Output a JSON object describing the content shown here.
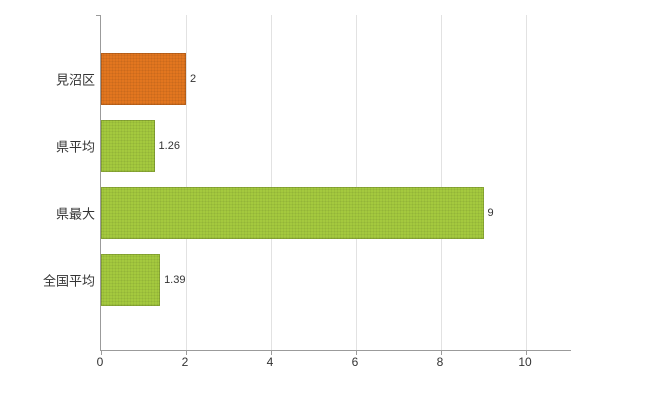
{
  "chart_data": {
    "type": "bar",
    "orientation": "horizontal",
    "title": "",
    "categories": [
      "見沼区",
      "県平均",
      "県最大",
      "全国平均"
    ],
    "values": [
      2,
      1.26,
      9,
      1.39
    ],
    "value_labels": [
      "2",
      "1.26",
      "9",
      "1.39"
    ],
    "bar_colors": [
      "#e2761f",
      "#a4c93e",
      "#a4c93e",
      "#a4c93e"
    ],
    "xlim": [
      0,
      10
    ],
    "xticks": [
      0,
      2,
      4,
      6,
      8,
      10
    ],
    "xtick_labels": [
      "0",
      "2",
      "4",
      "6",
      "8",
      "10"
    ],
    "grid": true,
    "legend": "none",
    "colors": {
      "axis": "#9b9b9b",
      "gridline": "#e2e2e2",
      "text": "#333333",
      "background": "#ffffff"
    }
  }
}
